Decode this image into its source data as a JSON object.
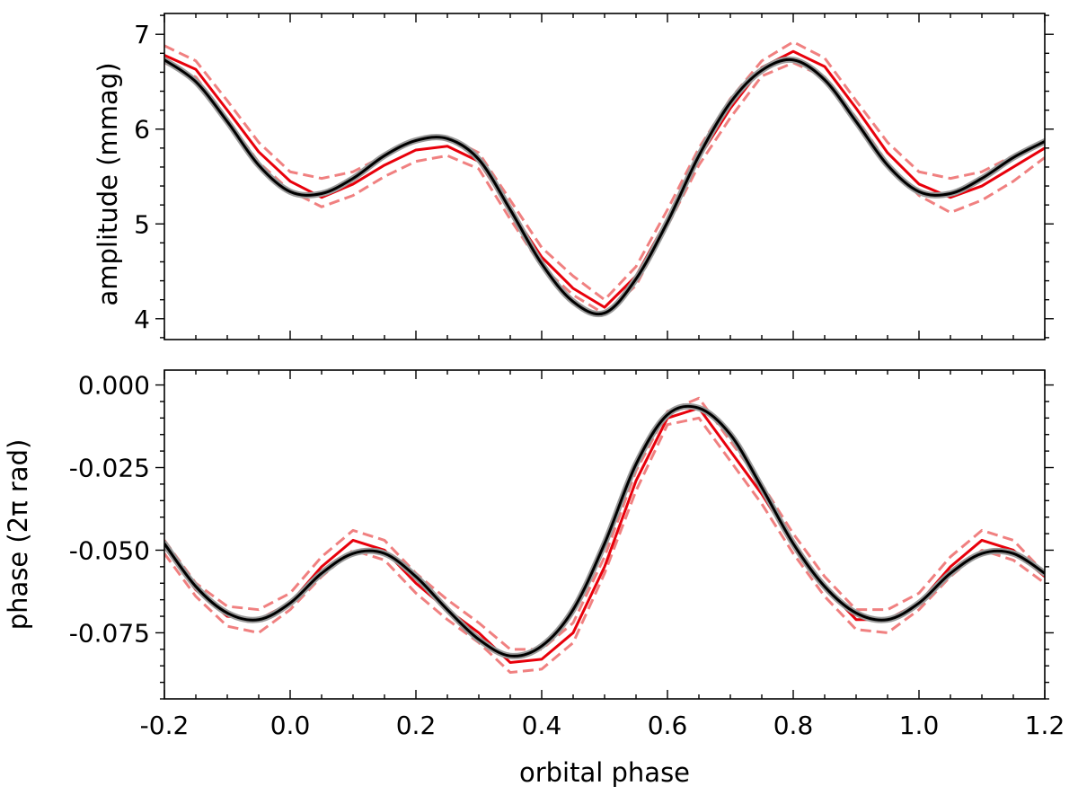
{
  "chart_data": [
    {
      "type": "line",
      "ylabel": "amplitude (mmag)",
      "xlim": [
        -0.2,
        1.2
      ],
      "ylim": [
        3.78,
        7.22
      ],
      "yticks": [
        4,
        5,
        6,
        7
      ],
      "yticklabels": [
        "4",
        "5",
        "6",
        "7"
      ],
      "xticks": [
        -0.2,
        0.0,
        0.2,
        0.4,
        0.6,
        0.8,
        1.0,
        1.2
      ],
      "series": [
        {
          "style": "dashed-light-red",
          "color": "#f08080",
          "x": [
            -0.2,
            -0.15,
            -0.1,
            -0.05,
            0.0,
            0.05,
            0.1,
            0.15,
            0.2,
            0.25,
            0.3,
            0.35,
            0.4,
            0.45,
            0.5,
            0.55,
            0.6,
            0.65,
            0.7,
            0.75,
            0.8,
            0.85,
            0.9,
            0.95,
            1.0,
            1.05,
            1.1,
            1.15,
            1.2
          ],
          "values": [
            6.88,
            6.72,
            6.3,
            5.86,
            5.55,
            5.48,
            5.55,
            5.72,
            5.88,
            5.92,
            5.75,
            5.25,
            4.75,
            4.45,
            4.2,
            4.55,
            5.15,
            5.8,
            6.32,
            6.72,
            6.92,
            6.75,
            6.3,
            5.86,
            5.55,
            5.48,
            5.55,
            5.72,
            5.88
          ]
        },
        {
          "style": "dashed-light-red",
          "color": "#f08080",
          "x": [
            -0.2,
            -0.15,
            -0.1,
            -0.05,
            0.0,
            0.05,
            0.1,
            0.15,
            0.2,
            0.25,
            0.3,
            0.35,
            0.4,
            0.45,
            0.5,
            0.55,
            0.6,
            0.65,
            0.7,
            0.75,
            0.8,
            0.85,
            0.9,
            0.95,
            1.0,
            1.05,
            1.1,
            1.15,
            1.2
          ],
          "values": [
            6.7,
            6.55,
            6.1,
            5.65,
            5.35,
            5.18,
            5.3,
            5.5,
            5.66,
            5.72,
            5.58,
            5.05,
            4.55,
            4.25,
            4.05,
            4.35,
            4.98,
            5.62,
            6.12,
            6.56,
            6.7,
            6.55,
            6.12,
            5.64,
            5.3,
            5.12,
            5.25,
            5.45,
            5.7
          ]
        },
        {
          "style": "solid-red",
          "color": "#e8000b",
          "x": [
            -0.2,
            -0.15,
            -0.1,
            -0.05,
            0.0,
            0.05,
            0.1,
            0.15,
            0.2,
            0.25,
            0.3,
            0.35,
            0.4,
            0.45,
            0.5,
            0.55,
            0.6,
            0.65,
            0.7,
            0.75,
            0.8,
            0.85,
            0.9,
            0.95,
            1.0,
            1.05,
            1.1,
            1.15,
            1.2
          ],
          "values": [
            6.78,
            6.63,
            6.2,
            5.76,
            5.45,
            5.28,
            5.42,
            5.62,
            5.78,
            5.82,
            5.66,
            5.15,
            4.65,
            4.32,
            4.12,
            4.45,
            5.05,
            5.7,
            6.22,
            6.65,
            6.82,
            6.66,
            6.22,
            5.75,
            5.42,
            5.28,
            5.4,
            5.6,
            5.8
          ]
        },
        {
          "style": "solid-black",
          "color": "#000000",
          "x": [
            -0.2,
            -0.15,
            -0.1,
            -0.05,
            0.0,
            0.05,
            0.1,
            0.15,
            0.2,
            0.25,
            0.3,
            0.35,
            0.4,
            0.45,
            0.5,
            0.55,
            0.6,
            0.65,
            0.7,
            0.75,
            0.8,
            0.85,
            0.9,
            0.95,
            1.0,
            1.05,
            1.1,
            1.15,
            1.2
          ],
          "values": [
            6.73,
            6.5,
            6.08,
            5.62,
            5.34,
            5.32,
            5.48,
            5.72,
            5.88,
            5.9,
            5.68,
            5.15,
            4.58,
            4.18,
            4.06,
            4.42,
            5.02,
            5.72,
            6.28,
            6.62,
            6.73,
            6.52,
            6.08,
            5.62,
            5.34,
            5.32,
            5.48,
            5.7,
            5.87
          ]
        }
      ]
    },
    {
      "type": "line",
      "ylabel": "phase (2π rad)",
      "xlabel": "orbital phase",
      "xlim": [
        -0.2,
        1.2
      ],
      "ylim": [
        -0.095,
        0.0045
      ],
      "yticks": [
        0.0,
        -0.025,
        -0.05,
        -0.075
      ],
      "yticklabels": [
        "0.000",
        "-0.025",
        "-0.050",
        "-0.075"
      ],
      "xticks": [
        -0.2,
        0.0,
        0.2,
        0.4,
        0.6,
        0.8,
        1.0,
        1.2
      ],
      "xticklabels": [
        "-0.2",
        "0.0",
        "0.2",
        "0.4",
        "0.6",
        "0.8",
        "1.0",
        "1.2"
      ],
      "series": [
        {
          "style": "dashed-light-red",
          "color": "#f08080",
          "x": [
            -0.2,
            -0.15,
            -0.1,
            -0.05,
            0.0,
            0.05,
            0.1,
            0.15,
            0.2,
            0.25,
            0.3,
            0.35,
            0.4,
            0.45,
            0.5,
            0.55,
            0.6,
            0.65,
            0.7,
            0.75,
            0.8,
            0.85,
            0.9,
            0.95,
            1.0,
            1.05,
            1.1,
            1.15,
            1.2
          ],
          "values": [
            -0.047,
            -0.06,
            -0.067,
            -0.068,
            -0.063,
            -0.052,
            -0.044,
            -0.047,
            -0.057,
            -0.065,
            -0.072,
            -0.08,
            -0.08,
            -0.072,
            -0.052,
            -0.026,
            -0.008,
            -0.004,
            -0.017,
            -0.03,
            -0.045,
            -0.058,
            -0.068,
            -0.068,
            -0.063,
            -0.052,
            -0.044,
            -0.047,
            -0.057
          ]
        },
        {
          "style": "dashed-light-red",
          "color": "#f08080",
          "x": [
            -0.2,
            -0.15,
            -0.1,
            -0.05,
            0.0,
            0.05,
            0.1,
            0.15,
            0.2,
            0.25,
            0.3,
            0.35,
            0.4,
            0.45,
            0.5,
            0.55,
            0.6,
            0.65,
            0.7,
            0.75,
            0.8,
            0.85,
            0.9,
            0.95,
            1.0,
            1.05,
            1.1,
            1.15,
            1.2
          ],
          "values": [
            -0.051,
            -0.064,
            -0.073,
            -0.075,
            -0.068,
            -0.058,
            -0.05,
            -0.053,
            -0.063,
            -0.071,
            -0.078,
            -0.087,
            -0.086,
            -0.078,
            -0.057,
            -0.032,
            -0.012,
            -0.01,
            -0.023,
            -0.036,
            -0.051,
            -0.064,
            -0.074,
            -0.075,
            -0.068,
            -0.058,
            -0.05,
            -0.053,
            -0.06
          ]
        },
        {
          "style": "solid-red",
          "color": "#e8000b",
          "x": [
            -0.2,
            -0.15,
            -0.1,
            -0.05,
            0.0,
            0.05,
            0.1,
            0.15,
            0.2,
            0.25,
            0.3,
            0.35,
            0.4,
            0.45,
            0.5,
            0.55,
            0.6,
            0.65,
            0.7,
            0.75,
            0.8,
            0.85,
            0.9,
            0.95,
            1.0,
            1.05,
            1.1,
            1.15,
            1.2
          ],
          "values": [
            -0.049,
            -0.062,
            -0.07,
            -0.071,
            -0.066,
            -0.055,
            -0.047,
            -0.05,
            -0.06,
            -0.068,
            -0.075,
            -0.084,
            -0.083,
            -0.075,
            -0.055,
            -0.029,
            -0.01,
            -0.007,
            -0.02,
            -0.033,
            -0.048,
            -0.061,
            -0.071,
            -0.071,
            -0.066,
            -0.055,
            -0.047,
            -0.05,
            -0.058
          ]
        },
        {
          "style": "solid-black",
          "color": "#000000",
          "x": [
            -0.2,
            -0.15,
            -0.1,
            -0.05,
            0.0,
            0.05,
            0.1,
            0.15,
            0.2,
            0.25,
            0.3,
            0.35,
            0.4,
            0.45,
            0.5,
            0.55,
            0.6,
            0.65,
            0.7,
            0.75,
            0.8,
            0.85,
            0.9,
            0.95,
            1.0,
            1.05,
            1.1,
            1.15,
            1.2
          ],
          "values": [
            -0.048,
            -0.061,
            -0.069,
            -0.071,
            -0.066,
            -0.057,
            -0.051,
            -0.051,
            -0.058,
            -0.068,
            -0.077,
            -0.082,
            -0.079,
            -0.068,
            -0.048,
            -0.024,
            -0.009,
            -0.007,
            -0.015,
            -0.031,
            -0.048,
            -0.061,
            -0.069,
            -0.071,
            -0.066,
            -0.057,
            -0.051,
            -0.051,
            -0.057
          ]
        }
      ]
    }
  ]
}
